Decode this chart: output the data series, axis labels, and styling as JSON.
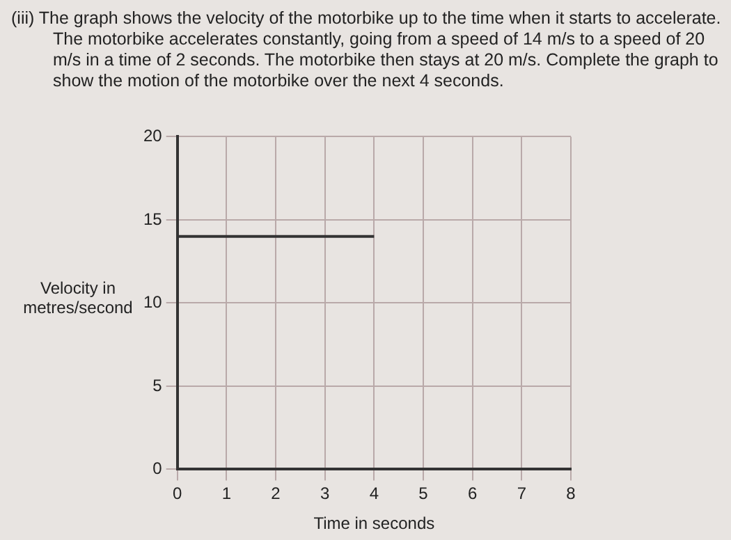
{
  "chart_data": {
    "type": "line",
    "title": "(iii) The graph shows the velocity of the motorbike up to the time when it starts to accelerate. The motorbike accelerates constantly, going from a speed of 14 m/s to a speed of 20 m/s in a time of 2 seconds. The motorbike then stays at 20 m/s. Complete the graph to show the motion of the motorbike over the next 4 seconds.",
    "xlabel": "Time in seconds",
    "ylabel": "Velocity in metres/second",
    "x": [
      0,
      4
    ],
    "series": [
      {
        "color": "#333333",
        "values": [
          14,
          14
        ]
      }
    ],
    "xlim": [
      0,
      8
    ],
    "xticks": [
      0,
      1,
      2,
      3,
      4,
      5,
      6,
      7,
      8
    ],
    "ylim": [
      0,
      20
    ],
    "yticks": [
      0,
      5,
      10,
      15,
      20
    ],
    "grid": true,
    "legend": false,
    "marker": "none",
    "line_style": "solid"
  }
}
